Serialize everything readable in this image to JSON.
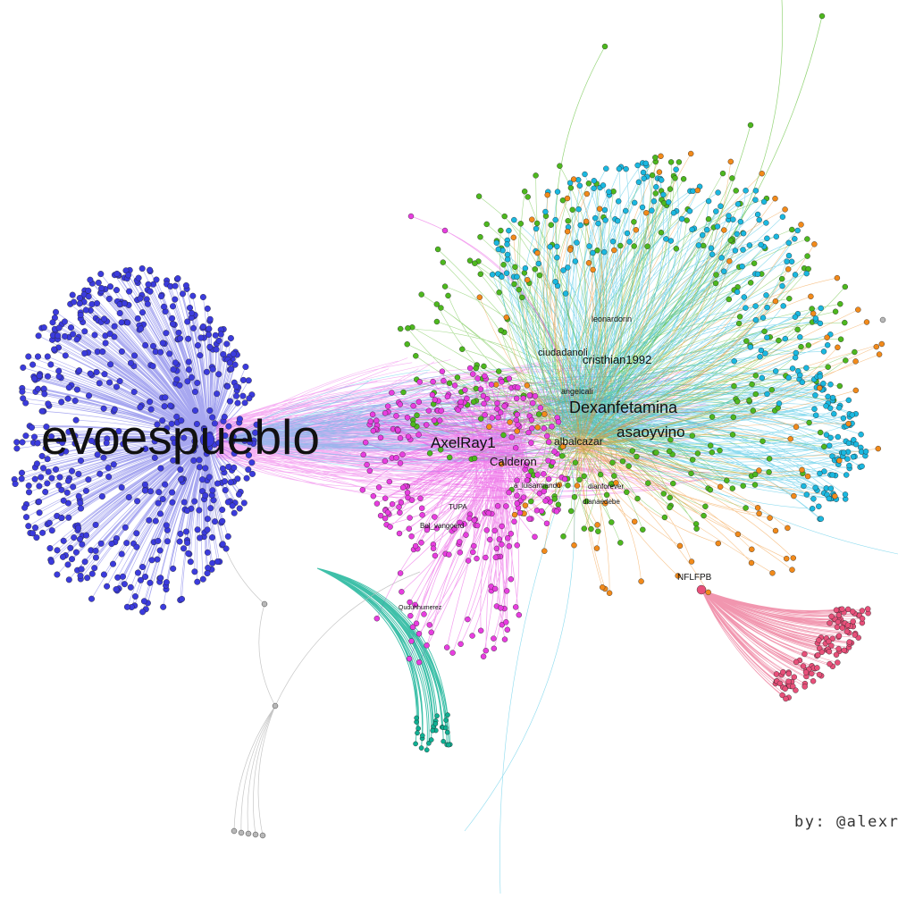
{
  "graph": {
    "hub_label": "evoespueblo",
    "labels": {
      "dexanfetamina": "Dexanfetamina",
      "asaoyvino": "asaoyvino",
      "axelray": "AxelRay1",
      "cristhian": "cristhian1992",
      "ciudadano": "ciudadanoli",
      "calderon": "Calderon",
      "albalcazar": "albalcazar",
      "leonardo": "leonardorin",
      "nflfpb": "NFLFPB",
      "tupa": "TUPA",
      "bolvangoerd": "Bol_vangoerd",
      "luisarmando": "a_luisarmando",
      "dianforever": "dianforever",
      "diadedebe": "dianaedebe",
      "quduhhumerez": "Quduhhumerez",
      "angel": "angelcali"
    },
    "colors": {
      "hub": "#3b3bdd",
      "magenta": "#e83de0",
      "green": "#4db81e",
      "cyan": "#1ab8e0",
      "orange": "#f28a1a",
      "pink": "#e8507a",
      "teal": "#0fb093",
      "gray": "#b8b8b8"
    }
  },
  "credit": "by: @alexrod"
}
